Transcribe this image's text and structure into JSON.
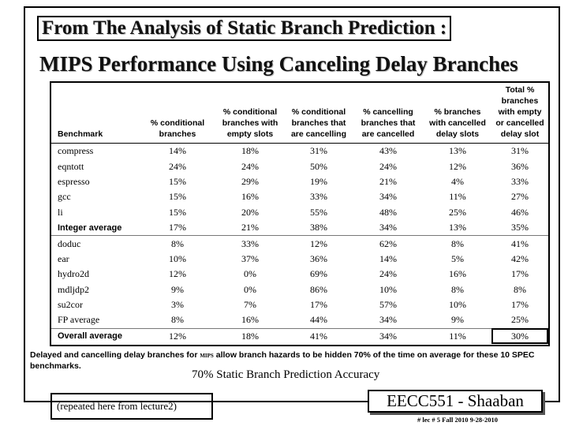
{
  "title_line1": "From The Analysis of Static Branch Prediction :",
  "title_line2": "MIPS Performance Using Canceling Delay Branches",
  "table": {
    "headers": [
      "Benchmark",
      "% conditional branches",
      "% conditional branches with empty slots",
      "% conditional branches that are cancelling",
      "% cancelling branches that are cancelled",
      "% branches with cancelled delay slots",
      "Total % branches with empty or cancelled delay slot"
    ],
    "rows": [
      {
        "name": "compress",
        "values": [
          "14%",
          "18%",
          "31%",
          "43%",
          "13%",
          "31%"
        ],
        "type": "data"
      },
      {
        "name": "eqntott",
        "values": [
          "24%",
          "24%",
          "50%",
          "24%",
          "12%",
          "36%"
        ],
        "type": "data"
      },
      {
        "name": "espresso",
        "values": [
          "15%",
          "29%",
          "19%",
          "21%",
          "4%",
          "33%"
        ],
        "type": "data"
      },
      {
        "name": "gcc",
        "values": [
          "15%",
          "16%",
          "33%",
          "34%",
          "11%",
          "27%"
        ],
        "type": "data"
      },
      {
        "name": "li",
        "values": [
          "15%",
          "20%",
          "55%",
          "48%",
          "25%",
          "46%"
        ],
        "type": "data"
      },
      {
        "name": "Integer average",
        "values": [
          "17%",
          "21%",
          "38%",
          "34%",
          "13%",
          "35%"
        ],
        "type": "avg"
      },
      {
        "name": "doduc",
        "values": [
          "8%",
          "33%",
          "12%",
          "62%",
          "8%",
          "41%"
        ],
        "type": "data"
      },
      {
        "name": "ear",
        "values": [
          "10%",
          "37%",
          "36%",
          "14%",
          "5%",
          "42%"
        ],
        "type": "data"
      },
      {
        "name": "hydro2d",
        "values": [
          "12%",
          "0%",
          "69%",
          "24%",
          "16%",
          "17%"
        ],
        "type": "data"
      },
      {
        "name": "mdljdp2",
        "values": [
          "9%",
          "0%",
          "86%",
          "10%",
          "8%",
          "8%"
        ],
        "type": "data"
      },
      {
        "name": "su2cor",
        "values": [
          "3%",
          "7%",
          "17%",
          "57%",
          "10%",
          "17%"
        ],
        "type": "data"
      },
      {
        "name": "FP average",
        "values": [
          "8%",
          "16%",
          "44%",
          "34%",
          "9%",
          "25%"
        ],
        "type": "data"
      },
      {
        "name": "Overall average",
        "values": [
          "12%",
          "18%",
          "41%",
          "34%",
          "11%",
          "30%"
        ],
        "type": "overall"
      }
    ]
  },
  "caption_part1": "Delayed and cancelling delay branches for ",
  "caption_mips": "MIPS",
  "caption_part2": " allow branch hazards to be hidden 70% of the time on average for these 10 SPEC benchmarks.",
  "accuracy": "70% Static Branch Prediction Accuracy",
  "repeated_note": "(repeated here from lecture2)",
  "course": "EECC551 - Shaaban",
  "footer": "#  lec # 5  Fall 2010  9-28-2010"
}
